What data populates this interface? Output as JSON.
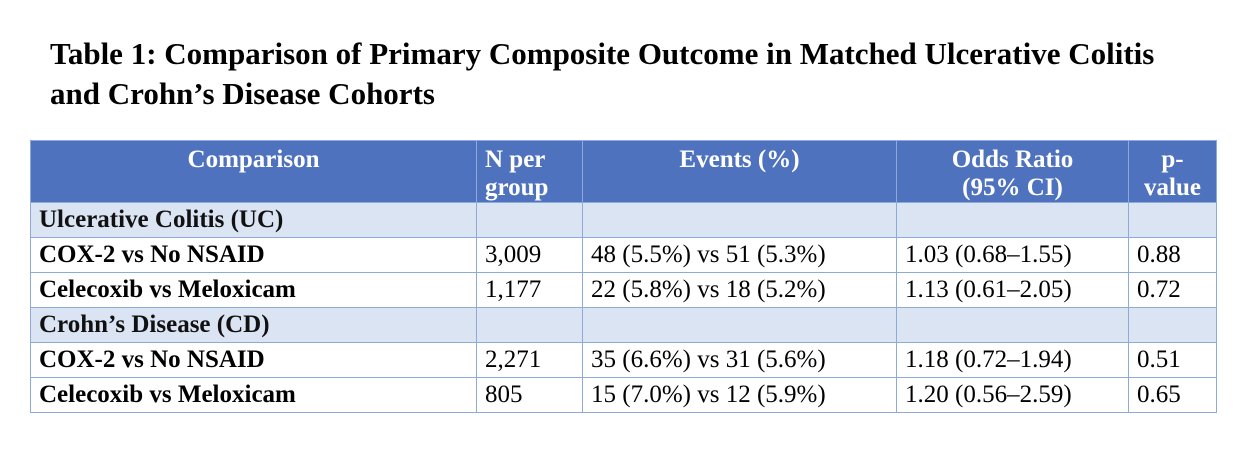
{
  "title": "Table 1: Comparison of Primary Composite Outcome in Matched Ulcerative Colitis and Crohn’s Disease Cohorts",
  "table": {
    "headers": {
      "comparison": "Comparison",
      "n_line1": "N per",
      "n_line2": "group",
      "events": "Events (%)",
      "or_line1": "Odds Ratio",
      "or_line2": "(95% CI)",
      "p_line1": "p-",
      "p_line2": "value"
    },
    "groups": [
      {
        "label": "Ulcerative Colitis (UC)",
        "rows": [
          {
            "comparison": "COX-2 vs No NSAID",
            "n": "3,009",
            "events": "48 (5.5%) vs 51 (5.3%)",
            "or": "1.03 (0.68–1.55)",
            "p": "0.88"
          },
          {
            "comparison": "Celecoxib vs Meloxicam",
            "n": "1,177",
            "events": "22 (5.8%) vs 18 (5.2%)",
            "or": "1.13 (0.61–2.05)",
            "p": "0.72"
          }
        ]
      },
      {
        "label": "Crohn’s Disease (CD)",
        "rows": [
          {
            "comparison": "COX-2 vs No NSAID",
            "n": "2,271",
            "events": "35 (6.6%) vs 31 (5.6%)",
            "or": "1.18 (0.72–1.94)",
            "p": "0.51"
          },
          {
            "comparison": "Celecoxib vs Meloxicam",
            "n": "805",
            "events": "15 (7.0%) vs 12 (5.9%)",
            "or": "1.20 (0.56–2.59)",
            "p": "0.65"
          }
        ]
      }
    ]
  },
  "colors": {
    "header_bg": "#4f72bf",
    "group_row_bg": "#dbe4f3",
    "border": "#8eaad8"
  }
}
